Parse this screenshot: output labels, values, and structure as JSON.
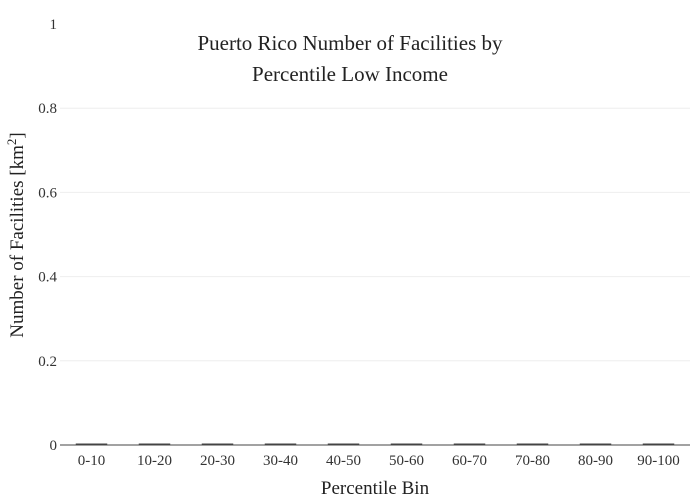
{
  "chart_data": {
    "type": "bar",
    "title_lines": [
      "Puerto Rico Number of Facilities by",
      "Percentile Low Income"
    ],
    "xlabel": "Percentile Bin",
    "ylabel": "Number of Facilities  [km",
    "ylabel_superscript": "2",
    "ylabel_suffix": "]",
    "categories": [
      "0-10",
      "10-20",
      "20-30",
      "30-40",
      "40-50",
      "50-60",
      "60-70",
      "70-80",
      "80-90",
      "90-100"
    ],
    "values": [
      0,
      0,
      0,
      0,
      0,
      0,
      0,
      0,
      0,
      0
    ],
    "ylim": [
      0,
      1
    ],
    "yticks": [
      0,
      0.2,
      0.4,
      0.6,
      0.8,
      1
    ],
    "ytick_labels": [
      "0",
      "0.2",
      "0.4",
      "0.6",
      "0.8",
      "1"
    ],
    "grid": true,
    "bar_color": "#444444"
  }
}
